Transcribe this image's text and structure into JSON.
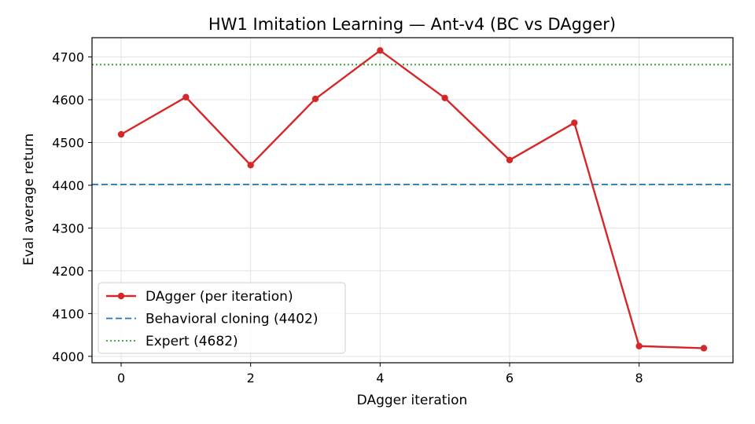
{
  "chart_data": {
    "type": "line",
    "title": "HW1 Imitation Learning — Ant-v4 (BC vs DAgger)",
    "xlabel": "DAgger iteration",
    "ylabel": "Eval average return",
    "xlim": [
      -0.45,
      9.45
    ],
    "ylim": [
      3985,
      4745
    ],
    "xticks": [
      0,
      2,
      4,
      6,
      8
    ],
    "yticks": [
      4000,
      4100,
      4200,
      4300,
      4400,
      4500,
      4600,
      4700
    ],
    "grid": true,
    "legend_position": "lower-left",
    "series": [
      {
        "name": "DAgger (per iteration)",
        "style": "solid-with-markers",
        "color": "#d62728",
        "x": [
          0,
          1,
          2,
          3,
          4,
          5,
          6,
          7,
          8,
          9
        ],
        "y": [
          4519,
          4606,
          4447,
          4602,
          4715,
          4604,
          4459,
          4546,
          4024,
          4019
        ]
      }
    ],
    "reference_lines": [
      {
        "name": "Behavioral cloning (4402)",
        "y": 4402,
        "style": "dashed",
        "color": "#1f77b4"
      },
      {
        "name": "Expert (4682)",
        "y": 4682,
        "style": "dotted",
        "color": "#2ca02c"
      }
    ]
  }
}
